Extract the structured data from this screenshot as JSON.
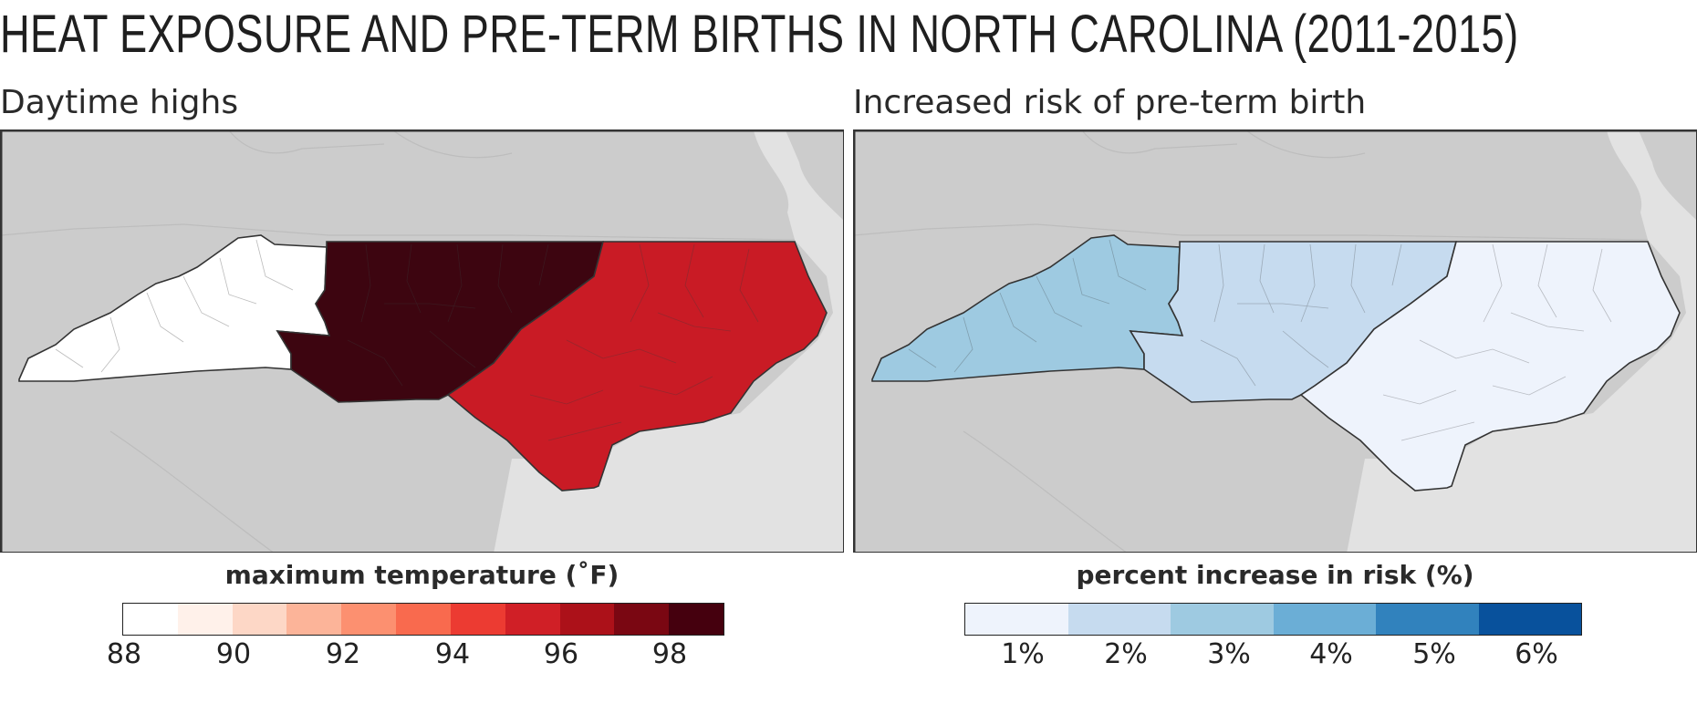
{
  "title": "HEAT EXPOSURE AND PRE-TERM BIRTHS IN NORTH CAROLINA (2011-2015)",
  "left_panel": {
    "subtitle": "Daytime highs",
    "colorbar_title": "maximum temperature (˚F)",
    "colorbar_colors": [
      "#ffffff",
      "#fff1ea",
      "#fdd7c6",
      "#fcb499",
      "#fc9070",
      "#f96a4e",
      "#ec3b32",
      "#d01f26",
      "#ac1119",
      "#7a0712",
      "#45000e"
    ],
    "colorbar_ticks": [
      "88",
      "90",
      "92",
      "94",
      "96",
      "98"
    ],
    "region_colors": {
      "west": "#ffffff",
      "central": "#3d0510",
      "east": "#c91b25"
    }
  },
  "right_panel": {
    "subtitle": "Increased risk of pre-term birth",
    "colorbar_title": "percent increase in risk (%)",
    "colorbar_colors": [
      "#eef3fc",
      "#c6dbef",
      "#9ecae1",
      "#6baed6",
      "#3182bd",
      "#08519c"
    ],
    "colorbar_ticks": [
      "1%",
      "2%",
      "3%",
      "4%",
      "5%",
      "6%"
    ],
    "region_colors": {
      "west": "#9ecae1",
      "central": "#c6dbef",
      "east": "#eef3fc"
    }
  },
  "colors": {
    "land": "#cccccc",
    "ocean": "#e2e2e2",
    "border": "#333333"
  }
}
